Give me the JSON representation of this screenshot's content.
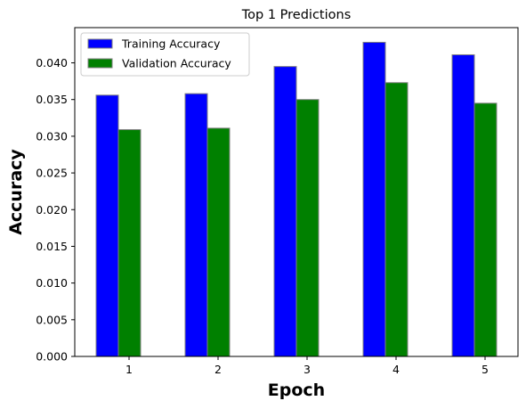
{
  "chart_data": {
    "type": "bar",
    "title": "Top 1 Predictions",
    "xlabel": "Epoch",
    "ylabel": "Accuracy",
    "categories": [
      "1",
      "2",
      "3",
      "4",
      "5"
    ],
    "series": [
      {
        "name": "Training Accuracy",
        "color": "#0000ff",
        "values": [
          0.0356,
          0.0358,
          0.0395,
          0.0428,
          0.0411
        ]
      },
      {
        "name": "Validation Accuracy",
        "color": "#008000",
        "values": [
          0.0309,
          0.0311,
          0.035,
          0.0373,
          0.0345
        ]
      }
    ],
    "ylim": [
      0,
      0.0448
    ],
    "yticks": [
      "0.000",
      "0.005",
      "0.010",
      "0.015",
      "0.020",
      "0.025",
      "0.030",
      "0.035",
      "0.040"
    ],
    "bar_edge_color": "#808080",
    "legend_position": "top-left",
    "grid": false
  }
}
